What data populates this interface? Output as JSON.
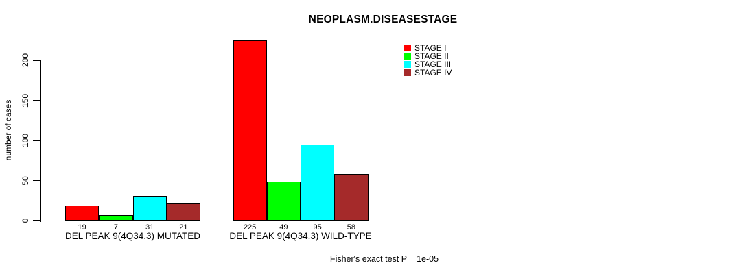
{
  "chart_data": {
    "type": "bar",
    "title": "NEOPLASM.DISEASESTAGE",
    "ylabel": "number of cases",
    "xlabel": "",
    "footer": "Fisher's exact test P = 1e-05",
    "categories": [
      "DEL PEAK 9(4Q34.3) MUTATED",
      "DEL PEAK 9(4Q34.3) WILD-TYPE"
    ],
    "series": [
      {
        "name": "STAGE I",
        "color": "#FF0000",
        "values": [
          19,
          225
        ]
      },
      {
        "name": "STAGE II",
        "color": "#00FF00",
        "values": [
          7,
          49
        ]
      },
      {
        "name": "STAGE III",
        "color": "#00FFFF",
        "values": [
          31,
          95
        ]
      },
      {
        "name": "STAGE IV",
        "color": "#A52A2A",
        "values": [
          21,
          58
        ]
      }
    ],
    "yticks": [
      0,
      50,
      100,
      150,
      200
    ],
    "ylim": [
      0,
      232
    ],
    "grid": false,
    "show_value_labels": true,
    "legend": {
      "position": "top-right",
      "entries": [
        "STAGE I",
        "STAGE II",
        "STAGE III",
        "STAGE IV"
      ]
    },
    "colors": {
      "axis": "#000000",
      "bar_border": "#000000",
      "text": "#000000",
      "background": "#FFFFFF"
    }
  }
}
